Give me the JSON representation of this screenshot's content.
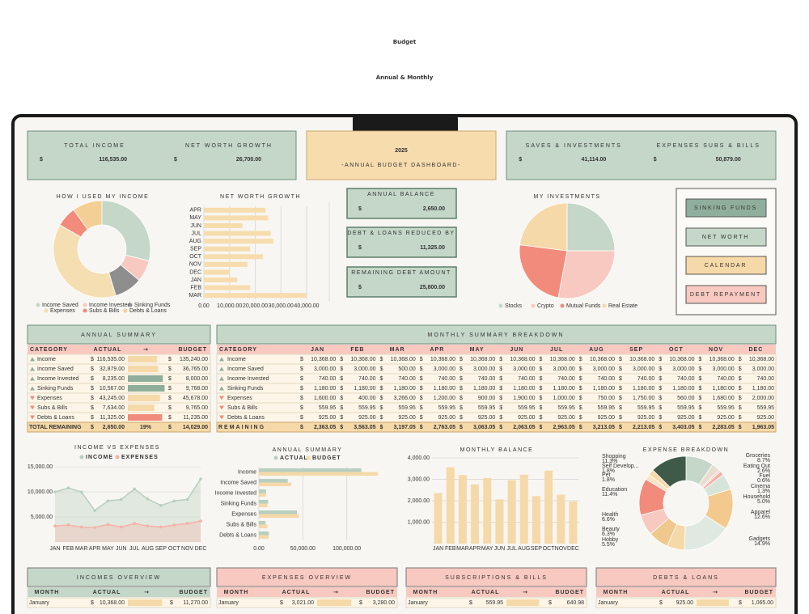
{
  "header": {
    "eyebrow": "Budget",
    "title": "Annual & Monthly"
  },
  "currency": "$",
  "kpis": [
    {
      "label": "TOTAL INCOME",
      "value": "116,535.00"
    },
    {
      "label": "NET WORTH GROWTH",
      "value": "26,700.00"
    },
    {
      "label": "SAVES & INVESTMENTS",
      "value": "41,114.00"
    },
    {
      "label": "EXPENSES SUBS & BILLS",
      "value": "50,879.00"
    }
  ],
  "year": "2025",
  "subtitle": "-ANNUAL BUDGET DASHBOARD-",
  "balances": [
    {
      "label": "ANNUAL BALANCE",
      "value": "2,650.00"
    },
    {
      "label": "DEBT & LOANS REDUCED BY",
      "value": "11,325.00"
    },
    {
      "label": "REMAINING DEBT AMOUNT",
      "value": "25,800.00"
    }
  ],
  "nav": [
    "SINKING FUNDS",
    "NET WORTH",
    "CALENDAR",
    "DEBT REPAYMENT"
  ],
  "annual_summary": {
    "title": "ANNUAL SUMMARY",
    "columns": [
      "CATEGORY",
      "ACTUAL",
      "→",
      "BUDGET"
    ],
    "rows": [
      [
        "Income",
        "116,535.00",
        "135,240.00"
      ],
      [
        "Income Saved",
        "32,879.00",
        "36,765.00"
      ],
      [
        "Income Invested",
        "8,235.00",
        "8,000.00"
      ],
      [
        "Sinking Funds",
        "10,567.00",
        "9,768.00"
      ],
      [
        "Expenses",
        "43,245.00",
        "45,678.00"
      ],
      [
        "Subs & Bills",
        "7,634.00",
        "9,765.00"
      ],
      [
        "Debts & Loans",
        "11,325.00",
        "11,235.00"
      ]
    ],
    "total": [
      "TOTAL REMAINING",
      "2,650.00",
      "19%",
      "14,029.00"
    ]
  },
  "monthly_summary": {
    "title": "MONTHLY SUMMARY BREAKDOWN",
    "columns": [
      "CATEGORY",
      "JAN",
      "FEB",
      "MAR",
      "APR",
      "MAY",
      "JUN",
      "JUL",
      "AUG",
      "SEP",
      "OCT",
      "NOV",
      "DEC"
    ],
    "rows": [
      [
        "Income",
        "10,368.00",
        "10,368.00",
        "10,368.00",
        "10,368.00",
        "10,368.00",
        "10,368.00",
        "10,368.00",
        "10,368.00",
        "10,368.00",
        "10,368.00",
        "10,368.00",
        "10,368.00"
      ],
      [
        "Income Saved",
        "3,000.00",
        "3,000.00",
        "500.00",
        "3,000.00",
        "3,000.00",
        "3,000.00",
        "3,000.00",
        "3,000.00",
        "3,000.00",
        "3,000.00",
        "3,000.00",
        "3,000.00"
      ],
      [
        "Income Invested",
        "740.00",
        "740.00",
        "740.00",
        "740.00",
        "740.00",
        "740.00",
        "740.00",
        "740.00",
        "740.00",
        "740.00",
        "740.00",
        "740.00"
      ],
      [
        "Sinking Funds",
        "1,180.00",
        "1,180.00",
        "1,180.00",
        "1,180.00",
        "1,180.00",
        "1,180.00",
        "1,180.00",
        "1,180.00",
        "1,180.00",
        "1,180.00",
        "1,180.00",
        "1,180.00"
      ],
      [
        "Expenses",
        "1,600.00",
        "400.00",
        "3,266.00",
        "1,200.00",
        "900.00",
        "1,900.00",
        "1,000.00",
        "750.00",
        "1,750.00",
        "560.00",
        "1,680.00",
        "2,000.00"
      ],
      [
        "Subs & Bills",
        "559.95",
        "559.95",
        "559.95",
        "559.95",
        "559.95",
        "559.95",
        "559.95",
        "559.95",
        "559.95",
        "559.95",
        "559.95",
        "559.95"
      ],
      [
        "Debts & Loans",
        "925.00",
        "925.00",
        "925.00",
        "925.00",
        "925.00",
        "925.00",
        "925.00",
        "925.00",
        "925.00",
        "925.00",
        "925.00",
        "925.00"
      ]
    ],
    "total": [
      "REMAINING",
      "2,363.05",
      "3,563.05",
      "3,197.05",
      "2,763.05",
      "3,063.05",
      "2,063.05",
      "2,963.05",
      "3,213.05",
      "2,213.05",
      "3,403.05",
      "2,283.05",
      "1,963.05"
    ]
  },
  "overviews": [
    {
      "title": "INCOMES OVERVIEW",
      "columns": [
        "MONTH",
        "ACTUAL",
        "→",
        "BUDGET"
      ],
      "rows": [
        [
          "January",
          "10,368.00",
          "11,270.00"
        ]
      ]
    },
    {
      "title": "EXPENSES OVERVIEW",
      "columns": [
        "MONTH",
        "ACTUAL",
        "→",
        "BUDGET"
      ],
      "rows": [
        [
          "January",
          "3,021.00",
          "3,280.00"
        ]
      ]
    },
    {
      "title": "SUBSCRIPTIONS & BILLS",
      "columns": [
        "MONTH",
        "ACTUAL",
        "→",
        "BUDGET"
      ],
      "rows": [
        [
          "January",
          "559.95",
          "640.98"
        ]
      ]
    },
    {
      "title": "DEBTS & LOANS",
      "columns": [
        "MONTH",
        "ACTUAL",
        "→",
        "BUDGET"
      ],
      "rows": [
        [
          "January",
          "925.00",
          "1,065.00"
        ]
      ]
    }
  ],
  "chart_data": [
    {
      "type": "donut",
      "title": "HOW I USED MY INCOME",
      "categories": [
        "Income Saved",
        "Income Invested",
        "Sinking Funds",
        "Expenses",
        "Subs & Bills",
        "Debts & Loans"
      ],
      "values": [
        32879,
        8235,
        10567,
        43245,
        7634,
        11325
      ],
      "colors": [
        "#c4d7c9",
        "#f8c9c0",
        "#8e8e8e",
        "#f6deb3",
        "#f28b7b",
        "#f3cf95"
      ]
    },
    {
      "type": "bar",
      "orientation": "horizontal",
      "title": "NET WORTH GROWTH",
      "categories": [
        "APR",
        "MAY",
        "JUN",
        "JUL",
        "AUG",
        "SEP",
        "OCT",
        "NOV",
        "DEC",
        "JAN",
        "FEB",
        "MAR"
      ],
      "values": [
        24000,
        25000,
        15000,
        26000,
        27000,
        18000,
        23000,
        17000,
        10000,
        13000,
        18000,
        40000
      ],
      "color": "#f7dcae",
      "xlim": [
        0,
        40000
      ],
      "xticks": [
        {
          "value": 0,
          "label": "0.00"
        },
        {
          "value": 10000,
          "label": "10,000.00"
        },
        {
          "value": 20000,
          "label": "20,000.00"
        },
        {
          "value": 30000,
          "label": "30,000.00"
        },
        {
          "value": 40000,
          "label": "40,000.00"
        }
      ],
      "grid": true
    },
    {
      "type": "pie",
      "title": "MY INVESTMENTS",
      "categories": [
        "Stocks",
        "Crypto",
        "Mutual Funds",
        "Real Estate"
      ],
      "values": [
        25,
        28,
        24,
        23
      ],
      "colors": [
        "#c4d7c9",
        "#f8c9c0",
        "#f28b7b",
        "#f6d9a8"
      ]
    },
    {
      "type": "area",
      "title": "INCOME VS EXPENSES",
      "categories": [
        "JAN",
        "FEB",
        "MAR",
        "APR",
        "MAY",
        "JUN",
        "JUL",
        "AUG",
        "SEP",
        "OCT",
        "NOV",
        "DEC"
      ],
      "series": [
        {
          "name": "INCOME",
          "color": "#b8cfbf",
          "values": [
            10000,
            10800,
            10000,
            6300,
            8200,
            8500,
            10600,
            8600,
            7300,
            8200,
            8500,
            12600
          ]
        },
        {
          "name": "EXPENSES",
          "color": "#f5b3a6",
          "values": [
            3200,
            3400,
            3000,
            2900,
            3500,
            3000,
            3700,
            3200,
            3000,
            3400,
            3700,
            4200
          ]
        }
      ],
      "ylim": [
        0,
        16000
      ],
      "yticks": [
        {
          "value": 5000,
          "label": "5,000.00"
        },
        {
          "value": 10000,
          "label": "10,000.00"
        },
        {
          "value": 15000,
          "label": "15,000.00"
        }
      ]
    },
    {
      "type": "bar",
      "orientation": "horizontal",
      "title": "ANNUAL SUMMARY",
      "categories": [
        "Income",
        "Income Saved",
        "Income Invested",
        "Sinking Funds",
        "Expenses",
        "Subs & Bills",
        "Debts & Loans"
      ],
      "series": [
        {
          "name": "ACTUAL",
          "color": "#b8cfbf",
          "values": [
            116535,
            32879,
            8235,
            10567,
            43245,
            7634,
            11325
          ]
        },
        {
          "name": "BUDGET",
          "color": "#f6d9a8",
          "values": [
            135240,
            36765,
            8000,
            9768,
            45678,
            9765,
            11235
          ]
        }
      ],
      "xlim": [
        0,
        150000
      ],
      "xticks": [
        {
          "value": 0,
          "label": "0.00"
        },
        {
          "value": 50000,
          "label": "50,000.00"
        },
        {
          "value": 100000,
          "label": "100,000.00"
        }
      ]
    },
    {
      "type": "bar",
      "orientation": "vertical",
      "title": "MONTHLY BALANCE",
      "categories": [
        "JAN",
        "FEB",
        "MAR",
        "APR",
        "MAY",
        "JUN",
        "JUL",
        "AUG",
        "SEP",
        "OCT",
        "NOV",
        "DEC"
      ],
      "values": [
        2363.05,
        3563.05,
        3197.05,
        2763.05,
        3063.05,
        2063.05,
        2963.05,
        3213.05,
        2213.05,
        3403.05,
        2283.05,
        1963.05
      ],
      "color": "#f6d9a8",
      "ylim": [
        0,
        4000
      ],
      "yticks": [
        {
          "value": 1000,
          "label": "1,000.00"
        },
        {
          "value": 2000,
          "label": "2,000.00"
        },
        {
          "value": 3000,
          "label": "3,000.00"
        },
        {
          "value": 4000,
          "label": "4,000.00"
        }
      ],
      "grid": true
    },
    {
      "type": "donut",
      "title": "EXPENSE BREAKDOWN",
      "categories": [
        "Groceries",
        "Eating Out",
        "Fuel",
        "Cinema",
        "Household",
        "Apparel",
        "Gadgets",
        "Hobby",
        "Beauty",
        "Health",
        "Education",
        "Pet",
        "Self Develop...",
        "Shopping"
      ],
      "values": [
        8.7,
        2.6,
        0.6,
        1.3,
        5.0,
        12.6,
        14.9,
        5.5,
        6.3,
        6.6,
        11.4,
        1.8,
        1.8,
        11.3
      ],
      "value_labels": [
        "8.7%",
        "2.6%",
        "0.6%",
        "1.3%",
        "5.0%",
        "12.6%",
        "14.9%",
        "5.5%",
        "6.3%",
        "6.6%",
        "11.4%",
        "1.8%",
        "1.8%",
        "11.3%"
      ],
      "colors": [
        "#c4d7c9",
        "#e9ddd0",
        "#f8c9c0",
        "#f3b0a4",
        "#d6e4da",
        "#f4c98d",
        "#dfe9e2",
        "#f6d9a8",
        "#eec88c",
        "#f8c9c0",
        "#f28b7b",
        "#fbe3c4",
        "#f6d9a8",
        "#3f5a48"
      ]
    }
  ]
}
